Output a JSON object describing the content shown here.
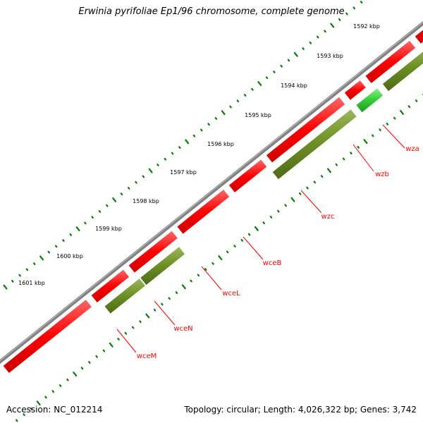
{
  "title": "Erwinia pyrifoliae Ep1/96 chromosome, complete genome",
  "footer": {
    "accession": "Accession: NC_012214",
    "summary": "Topology: circular; Length: 4,026,322 bp; Genes: 3,742"
  },
  "colors": {
    "backbone": "#808080",
    "forward_gene": "#ff0000",
    "reverse_gene": "#6b8e23",
    "highlight_gene": "#33cc33",
    "tick": "#008000",
    "label_line": "#ff0000"
  },
  "scale_labels": [
    "1592 kbp",
    "1593 kbp",
    "1594 kbp",
    "1595 kbp",
    "1596 kbp",
    "1597 kbp",
    "1598 kbp",
    "1599 kbp",
    "1600 kbp",
    "1601 kbp"
  ],
  "genes": [
    {
      "name": "wza",
      "strand": "reverse"
    },
    {
      "name": "wzb",
      "strand": "reverse",
      "highlight": true
    },
    {
      "name": "wzc",
      "strand": "reverse"
    },
    {
      "name": "wceB",
      "strand": "forward"
    },
    {
      "name": "wceL",
      "strand": "forward"
    },
    {
      "name": "wceN",
      "strand": "reverse"
    },
    {
      "name": "wceM",
      "strand": "reverse"
    }
  ]
}
